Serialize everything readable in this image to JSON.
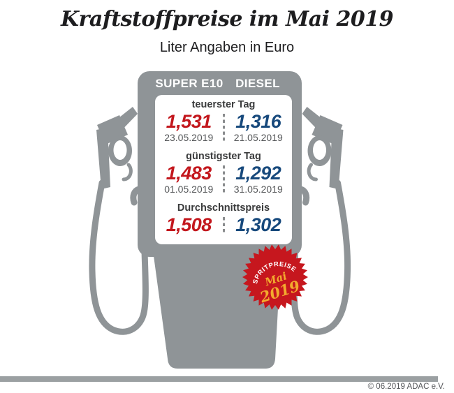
{
  "header": {
    "title": "Kraftstoffpreise im Mai 2019",
    "subtitle": "Liter Angaben in Euro"
  },
  "pump": {
    "fuel_columns": [
      "SUPER E10",
      "DIESEL"
    ],
    "sections": [
      {
        "label": "teuerster Tag",
        "values": [
          {
            "price": "1,531",
            "date": "23.05.2019"
          },
          {
            "price": "1,316",
            "date": "21.05.2019"
          }
        ]
      },
      {
        "label": "günstigster Tag",
        "values": [
          {
            "price": "1,483",
            "date": "01.05.2019"
          },
          {
            "price": "1,292",
            "date": "31.05.2019"
          }
        ]
      },
      {
        "label": "Durchschnittspreis",
        "values": [
          {
            "price": "1,508"
          },
          {
            "price": "1,302"
          }
        ]
      }
    ]
  },
  "badge": {
    "line1": "SPRITPREISE",
    "line2": "Mai",
    "line3": "2019"
  },
  "footer": {
    "credit": "© 06.2019  ADAC e.V."
  },
  "colors": {
    "super_e10_red": "#c3171d",
    "diesel_blue": "#17497c",
    "pump_gray": "#8f9497",
    "badge_red": "#c6171e",
    "badge_gold": "#f3ab2e",
    "footer_bar_gray": "#9ba0a2"
  },
  "chart_data": {
    "type": "table",
    "title": "Kraftstoffpreise im Mai 2019",
    "subtitle": "Liter Angaben in Euro",
    "unit": "Euro per liter",
    "columns": [
      "SUPER E10",
      "DIESEL"
    ],
    "rows": [
      {
        "label": "teuerster Tag",
        "super_e10": 1.531,
        "super_e10_date": "23.05.2019",
        "diesel": 1.316,
        "diesel_date": "21.05.2019"
      },
      {
        "label": "günstigster Tag",
        "super_e10": 1.483,
        "super_e10_date": "01.05.2019",
        "diesel": 1.292,
        "diesel_date": "31.05.2019"
      },
      {
        "label": "Durchschnittspreis",
        "super_e10": 1.508,
        "diesel": 1.302
      }
    ]
  }
}
